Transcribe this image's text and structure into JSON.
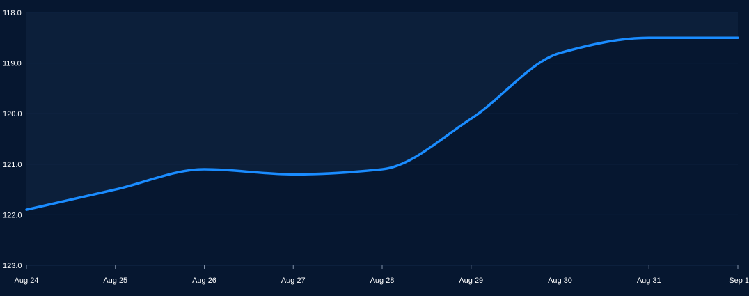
{
  "chart_data": {
    "type": "area",
    "title": "",
    "xlabel": "",
    "ylabel": "",
    "categories": [
      "Aug 24",
      "Aug 25",
      "Aug 26",
      "Aug 27",
      "Aug 28",
      "Aug 29",
      "Aug 30",
      "Aug 31",
      "Sep 1"
    ],
    "series": [
      {
        "values": [
          121.9,
          121.5,
          121.1,
          121.2,
          121.1,
          120.1,
          118.8,
          118.5,
          118.5
        ]
      }
    ],
    "ylim": [
      123.0,
      118.0
    ],
    "y_axis_inverted": true,
    "yticks": [
      "118.0",
      "119.0",
      "120.0",
      "121.0",
      "122.0",
      "123.0"
    ],
    "grid": true,
    "legend": "none",
    "colors": {
      "background": "#061730",
      "fill": "#0c1f3a",
      "line": "#1a8cff",
      "grid": "#13284a",
      "axis": "#8090a8",
      "text": "#ffffff"
    }
  }
}
